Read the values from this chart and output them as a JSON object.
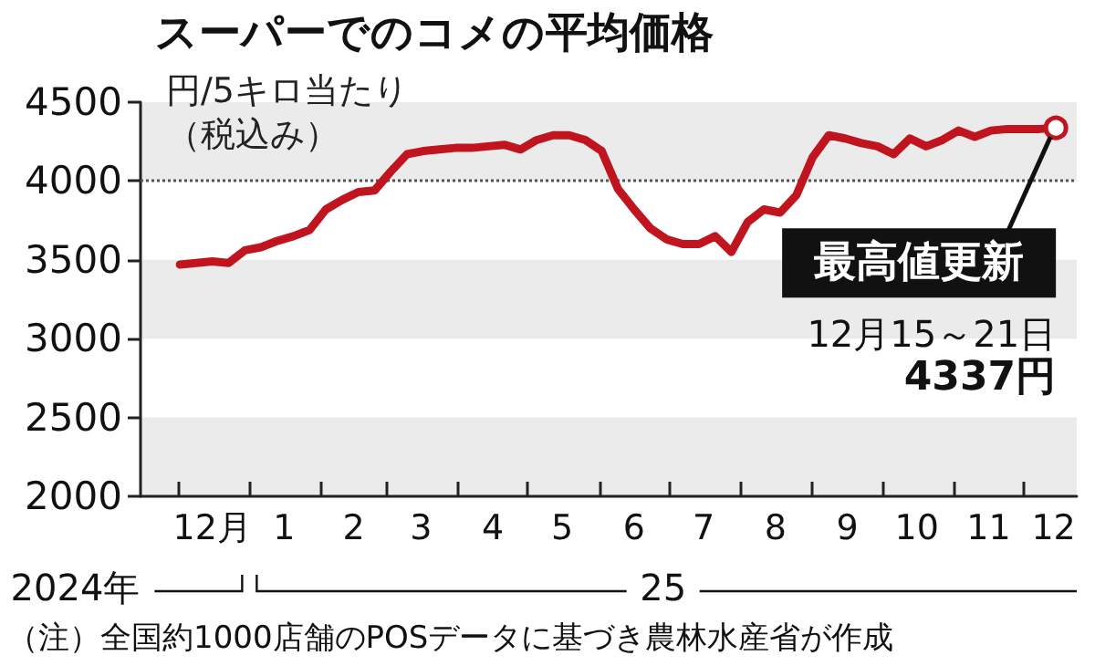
{
  "chart_data": {
    "type": "line",
    "title": "スーパーでのコメの平均価格",
    "ylabel": "円/5キロ当たり（税込み）",
    "x": [
      "2024-12-02",
      "2024-12-09",
      "2024-12-16",
      "2024-12-23",
      "2024-12-30",
      "2025-01-06",
      "2025-01-13",
      "2025-01-20",
      "2025-01-27",
      "2025-02-03",
      "2025-02-10",
      "2025-02-17",
      "2025-02-24",
      "2025-03-03",
      "2025-03-10",
      "2025-03-17",
      "2025-03-24",
      "2025-03-31",
      "2025-04-07",
      "2025-04-14",
      "2025-04-21",
      "2025-04-28",
      "2025-05-05",
      "2025-05-12",
      "2025-05-19",
      "2025-05-26",
      "2025-06-02",
      "2025-06-09",
      "2025-06-16",
      "2025-06-23",
      "2025-06-30",
      "2025-07-07",
      "2025-07-14",
      "2025-07-21",
      "2025-07-28",
      "2025-08-04",
      "2025-08-11",
      "2025-08-18",
      "2025-08-25",
      "2025-09-01",
      "2025-09-08",
      "2025-09-15",
      "2025-09-22",
      "2025-09-29",
      "2025-10-06",
      "2025-10-13",
      "2025-10-20",
      "2025-10-27",
      "2025-11-03",
      "2025-11-10",
      "2025-11-17",
      "2025-11-24",
      "2025-12-01",
      "2025-12-08",
      "2025-12-15"
    ],
    "series": [
      {
        "color": "#c0141e",
        "values": [
          3470,
          3480,
          3490,
          3480,
          3560,
          3580,
          3620,
          3650,
          3690,
          3820,
          3880,
          3930,
          3940,
          4060,
          4170,
          4190,
          4200,
          4210,
          4210,
          4220,
          4230,
          4200,
          4260,
          4290,
          4290,
          4260,
          4190,
          3950,
          3820,
          3700,
          3630,
          3600,
          3600,
          3650,
          3550,
          3740,
          3820,
          3800,
          3910,
          4150,
          4290,
          4270,
          4240,
          4220,
          4170,
          4270,
          4220,
          4260,
          4320,
          4280,
          4320,
          4330,
          4330,
          4330,
          4337
        ]
      }
    ],
    "xlim": [
      "2024-11-15",
      "2025-12-24"
    ],
    "xticks": [
      {
        "value": "2024-12-01",
        "label": null
      },
      {
        "value": "2025-01-01",
        "label": null
      },
      {
        "value": "2025-02-01",
        "label": null
      },
      {
        "value": "2025-03-01",
        "label": null
      },
      {
        "value": "2025-04-01",
        "label": null
      },
      {
        "value": "2025-05-01",
        "label": null
      },
      {
        "value": "2025-06-01",
        "label": null
      },
      {
        "value": "2025-07-01",
        "label": null
      },
      {
        "value": "2025-08-01",
        "label": null
      },
      {
        "value": "2025-09-01",
        "label": null
      },
      {
        "value": "2025-10-01",
        "label": null
      },
      {
        "value": "2025-11-01",
        "label": null
      },
      {
        "value": "2025-12-01",
        "label": null
      },
      {
        "value": "2024-12-16",
        "label": "12月"
      },
      {
        "value": "2025-01-16",
        "label": "1"
      },
      {
        "value": "2025-02-15",
        "label": "2"
      },
      {
        "value": "2025-03-16",
        "label": "3"
      },
      {
        "value": "2025-04-16",
        "label": "4"
      },
      {
        "value": "2025-05-16",
        "label": "5"
      },
      {
        "value": "2025-06-16",
        "label": "6"
      },
      {
        "value": "2025-07-16",
        "label": "7"
      },
      {
        "value": "2025-08-16",
        "label": "8"
      },
      {
        "value": "2025-09-16",
        "label": "9"
      },
      {
        "value": "2025-10-16",
        "label": "10"
      },
      {
        "value": "2025-11-16",
        "label": "11"
      },
      {
        "value": "2025-12-14",
        "label": "12"
      }
    ],
    "ylim": [
      2000,
      4500
    ],
    "yticks": [
      2000,
      2500,
      3000,
      3500,
      4000,
      4500
    ],
    "marker": "none",
    "line_style": "solid",
    "bands": [
      {
        "axis": "y",
        "from": 2000,
        "to": 2500,
        "color": "#ebebeb"
      },
      {
        "axis": "y",
        "from": 3000,
        "to": 3500,
        "color": "#ebebeb"
      },
      {
        "axis": "y",
        "from": 4000,
        "to": 4500,
        "color": "#ebebeb"
      }
    ],
    "ref_lines": [
      {
        "axis": "y",
        "value": 4000,
        "color": "#555555",
        "line_style": "dotted"
      }
    ],
    "annotations": [
      {
        "text": "最高値更新",
        "x": "2025-12-15",
        "y": 4337
      },
      "12月15～21日",
      "4337円",
      "2024年",
      "25",
      "（注）全国約1000店舗のPOSデータに基づき農林水産省が作成"
    ]
  }
}
